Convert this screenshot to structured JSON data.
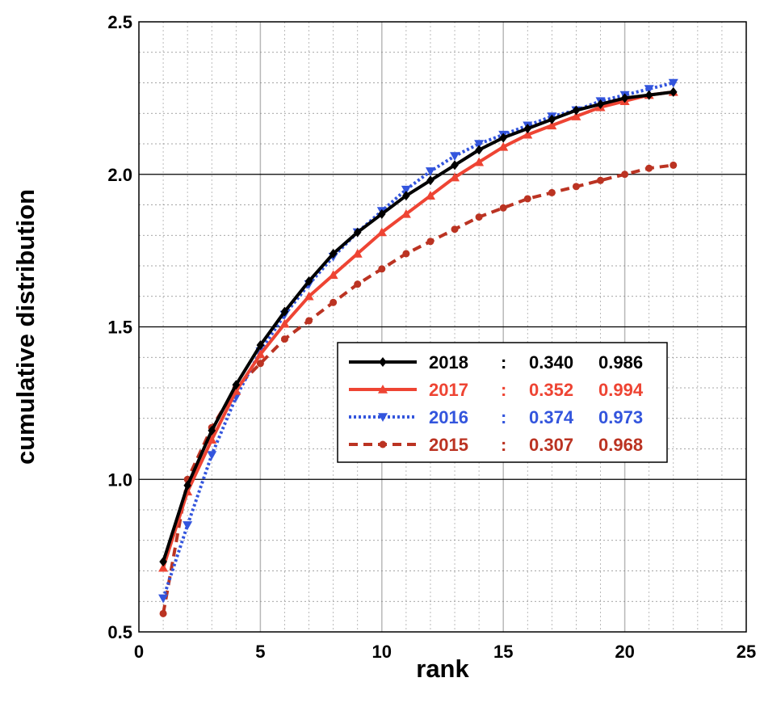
{
  "chart_data": {
    "type": "line",
    "xlabel": "rank",
    "ylabel": "cumulative distribution",
    "xlim": [
      0,
      25
    ],
    "ylim": [
      0.5,
      2.5
    ],
    "x_ticks": [
      "0",
      "5",
      "10",
      "15",
      "20",
      "25"
    ],
    "y_ticks": [
      "0.5",
      "1.0",
      "1.5",
      "2.0",
      "2.5"
    ],
    "grid": true,
    "legend_position": "center-right",
    "x": [
      1,
      2,
      3,
      4,
      5,
      6,
      7,
      8,
      9,
      10,
      11,
      12,
      13,
      14,
      15,
      16,
      17,
      18,
      19,
      20,
      21,
      22
    ],
    "series": [
      {
        "name": "2018",
        "color": "#000000",
        "marker": "diamond",
        "line_style": "solid",
        "values": [
          0.73,
          0.98,
          1.16,
          1.31,
          1.44,
          1.55,
          1.65,
          1.74,
          1.81,
          1.87,
          1.93,
          1.98,
          2.03,
          2.08,
          2.12,
          2.15,
          2.18,
          2.21,
          2.23,
          2.25,
          2.26,
          2.27
        ],
        "legend_values": [
          "0.340",
          "0.986"
        ]
      },
      {
        "name": "2017",
        "color": "#ee4433",
        "marker": "triangle-up",
        "line_style": "solid",
        "values": [
          0.71,
          0.96,
          1.13,
          1.29,
          1.41,
          1.51,
          1.6,
          1.67,
          1.74,
          1.81,
          1.87,
          1.93,
          1.99,
          2.04,
          2.09,
          2.13,
          2.16,
          2.19,
          2.22,
          2.24,
          2.26,
          2.27
        ],
        "legend_values": [
          "0.352",
          "0.994"
        ]
      },
      {
        "name": "2016",
        "color": "#3355dd",
        "marker": "triangle-down",
        "line_style": "dotted",
        "values": [
          0.61,
          0.85,
          1.08,
          1.27,
          1.42,
          1.54,
          1.64,
          1.73,
          1.81,
          1.88,
          1.95,
          2.01,
          2.06,
          2.1,
          2.13,
          2.16,
          2.19,
          2.21,
          2.24,
          2.26,
          2.28,
          2.3
        ],
        "legend_values": [
          "0.374",
          "0.973"
        ]
      },
      {
        "name": "2015",
        "color": "#bb3322",
        "marker": "circle",
        "line_style": "dashed",
        "values": [
          0.56,
          1.0,
          1.17,
          1.3,
          1.38,
          1.46,
          1.52,
          1.58,
          1.64,
          1.69,
          1.74,
          1.78,
          1.82,
          1.86,
          1.89,
          1.92,
          1.94,
          1.96,
          1.98,
          2.0,
          2.02,
          2.03
        ],
        "legend_values": [
          "0.307",
          "0.968"
        ]
      }
    ],
    "legend_separator": ":"
  }
}
